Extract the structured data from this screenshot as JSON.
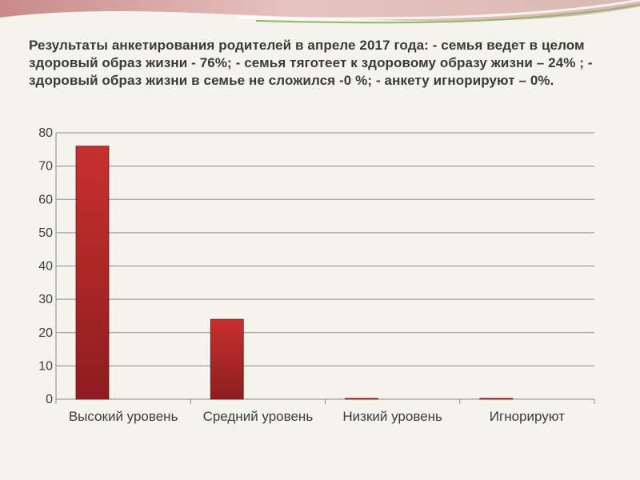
{
  "chart_data": {
    "type": "bar",
    "title": "Результаты анкетирования родителей в апреле 2017 года: - семья ведет в целом здоровый образ жизни -    76%; - семья тяготеет к здоровому образу жизни – 24% ; - здоровый образ жизни в семье не сложился -0 %; - анкету игнорируют – 0%.",
    "categories": [
      "Высокий уровень",
      "Средний уровень",
      "Низкий уровень",
      "Игнорируют"
    ],
    "values": [
      76,
      24,
      0,
      0
    ],
    "ylim": [
      0,
      80
    ],
    "yticks": [
      0,
      10,
      20,
      30,
      40,
      50,
      60,
      70,
      80
    ],
    "xlabel": "",
    "ylabel": "",
    "grid": true,
    "legend": "none",
    "bar_color": "#c7302f",
    "bar_color_dark": "#8e1d1f"
  }
}
